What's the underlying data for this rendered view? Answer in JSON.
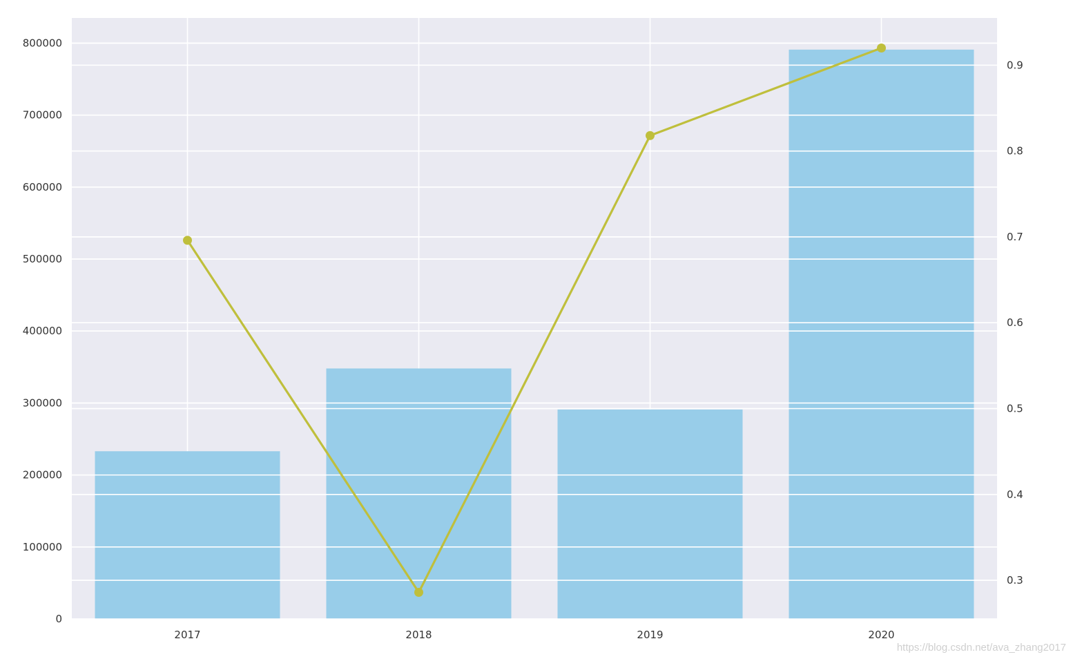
{
  "chart_data": {
    "type": "bar",
    "categories": [
      "2017",
      "2018",
      "2019",
      "2020"
    ],
    "series": [
      {
        "type": "bar",
        "axis": "left",
        "values": [
          233000,
          348000,
          291000,
          791000
        ],
        "color": "#98cde9"
      },
      {
        "type": "line",
        "axis": "right",
        "values": [
          0.696,
          0.286,
          0.818,
          0.92
        ],
        "color": "#bfbf3c"
      }
    ],
    "ylim_left": [
      0,
      835000
    ],
    "yticks_left": [
      0,
      100000,
      200000,
      300000,
      400000,
      500000,
      600000,
      700000,
      800000
    ],
    "ylim_right": [
      0.255,
      0.955
    ],
    "yticks_right": [
      "0.3",
      "0.4",
      "0.5",
      "0.6",
      "0.7",
      "0.8",
      "0.9"
    ],
    "plot_background": "#eaeaf2",
    "grid": true
  },
  "watermark": "https://blog.csdn.net/ava_zhang2017"
}
